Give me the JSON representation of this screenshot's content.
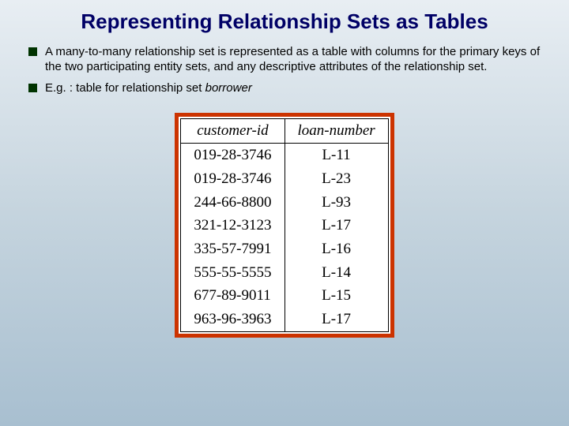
{
  "title": "Representing Relationship Sets as Tables",
  "bullets": [
    {
      "text": "A many-to-many relationship set is represented as a table with columns for the primary keys of the two participating entity sets, and any descriptive attributes of the relationship set."
    },
    {
      "prefix": "E.g. : table for relationship set ",
      "italic": "borrower"
    }
  ],
  "table": {
    "columns": [
      "customer-id",
      "loan-number"
    ],
    "rows": [
      [
        "019-28-3746",
        "L-11"
      ],
      [
        "019-28-3746",
        "L-23"
      ],
      [
        "244-66-8800",
        "L-93"
      ],
      [
        "321-12-3123",
        "L-17"
      ],
      [
        "335-57-7991",
        "L-16"
      ],
      [
        "555-55-5555",
        "L-14"
      ],
      [
        "677-89-9011",
        "L-15"
      ],
      [
        "963-96-3963",
        "L-17"
      ]
    ],
    "frame_border_color": "#cc3300",
    "header_font_style": "italic",
    "header_fontsize": 19,
    "cell_fontsize": 19,
    "font_family": "Georgia, Times New Roman, serif",
    "col_align": [
      "left",
      "center"
    ]
  },
  "colors": {
    "title_color": "#000066",
    "bullet_marker": "#003300",
    "background_top": "#e8eef3",
    "background_bottom": "#a8bfd0",
    "table_border": "#000000",
    "table_bg": "#ffffff"
  }
}
